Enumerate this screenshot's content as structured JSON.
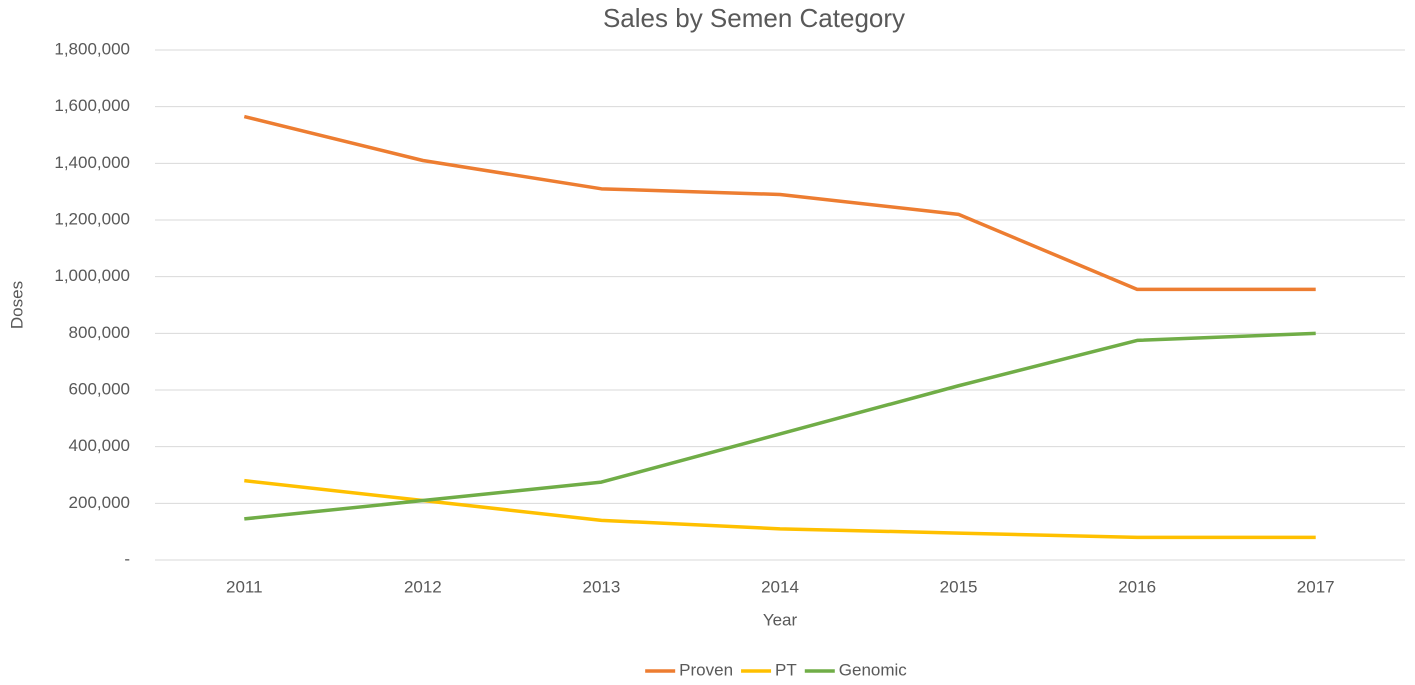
{
  "chart_data": {
    "type": "line",
    "title": "Sales by Semen Category",
    "x_label": "Year",
    "y_label": "Doses",
    "categories": [
      "2011",
      "2012",
      "2013",
      "2014",
      "2015",
      "2016",
      "2017"
    ],
    "series": [
      {
        "name": "Proven",
        "color": "#ED7D31",
        "values": [
          1565000,
          1410000,
          1310000,
          1290000,
          1220000,
          955000,
          955000
        ]
      },
      {
        "name": "PT",
        "color": "#FFC000",
        "values": [
          280000,
          210000,
          140000,
          110000,
          95000,
          80000,
          80000
        ]
      },
      {
        "name": "Genomic",
        "color": "#70AD47",
        "values": [
          145000,
          210000,
          275000,
          445000,
          615000,
          775000,
          800000
        ]
      }
    ],
    "ylim": [
      0,
      1800000
    ],
    "yticks": [
      {
        "value": 0,
        "label": "-"
      },
      {
        "value": 200000,
        "label": "200,000"
      },
      {
        "value": 400000,
        "label": "400,000"
      },
      {
        "value": 600000,
        "label": "600,000"
      },
      {
        "value": 800000,
        "label": "800,000"
      },
      {
        "value": 1000000,
        "label": "1,000,000"
      },
      {
        "value": 1200000,
        "label": "1,200,000"
      },
      {
        "value": 1400000,
        "label": "1,400,000"
      },
      {
        "value": 1600000,
        "label": "1,600,000"
      },
      {
        "value": 1800000,
        "label": "1,800,000"
      }
    ],
    "grid": true,
    "legend": "bottom"
  }
}
